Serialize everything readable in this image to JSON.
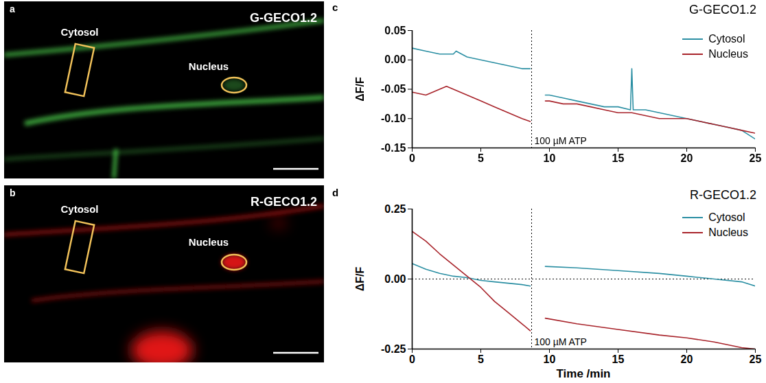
{
  "images": [
    {
      "panel": "a",
      "title": "G-GECO1.2",
      "color": "#4cd24c",
      "regions": [
        "Cytosol",
        "Nucleus"
      ]
    },
    {
      "panel": "b",
      "title": "R-GECO1.2",
      "color": "#e01818",
      "regions": [
        "Cytosol",
        "Nucleus"
      ]
    }
  ],
  "chart_data": [
    {
      "panel": "c",
      "type": "line",
      "title": "G-GECO1.2",
      "ylabel": "ΔF/F",
      "xlim": [
        0,
        25
      ],
      "xticks": [
        0,
        5,
        10,
        15,
        20,
        25
      ],
      "ylim": [
        -0.15,
        0.05
      ],
      "yticks": [
        0.05,
        {
          "value": 0,
          "label": "0.00"
        },
        -0.05,
        {
          "value": -0.1,
          "label": "-0.10"
        },
        {
          "value": -0.15,
          "label": "-0.15"
        }
      ],
      "legend": "upper right",
      "annotations": [
        {
          "x": 8.7,
          "text": "100 µM ATP"
        }
      ],
      "series": [
        {
          "name": "Cytosol",
          "color": "#2b8fa3",
          "x": [
            0,
            1,
            2,
            3,
            3.2,
            4,
            5,
            6,
            7,
            8,
            8.6,
            8.7,
            9.7,
            10,
            11,
            12,
            13,
            14,
            15,
            15.9,
            16,
            16.1,
            17,
            18,
            19,
            20,
            21,
            22,
            23,
            24,
            25
          ],
          "values": [
            0.02,
            0.015,
            0.01,
            0.01,
            0.015,
            0.005,
            0.0,
            -0.005,
            -0.01,
            -0.015,
            -0.015,
            null,
            -0.06,
            -0.06,
            -0.065,
            -0.07,
            -0.075,
            -0.08,
            -0.08,
            -0.085,
            -0.015,
            -0.085,
            -0.085,
            -0.09,
            -0.095,
            -0.1,
            -0.105,
            -0.11,
            -0.115,
            -0.12,
            -0.135
          ]
        },
        {
          "name": "Nucleus",
          "color": "#a8232a",
          "x": [
            0,
            1,
            2,
            2.5,
            3,
            4,
            5,
            6,
            7,
            8,
            8.6,
            8.7,
            9.7,
            10,
            11,
            12,
            13,
            14,
            15,
            16,
            17,
            18,
            19,
            20,
            21,
            22,
            23,
            24,
            25
          ],
          "values": [
            -0.055,
            -0.06,
            -0.05,
            -0.045,
            -0.05,
            -0.06,
            -0.07,
            -0.08,
            -0.09,
            -0.1,
            -0.105,
            null,
            -0.07,
            -0.07,
            -0.075,
            -0.075,
            -0.08,
            -0.085,
            -0.09,
            -0.09,
            -0.095,
            -0.1,
            -0.1,
            -0.1,
            -0.105,
            -0.11,
            -0.115,
            -0.12,
            -0.125
          ]
        }
      ]
    },
    {
      "panel": "d",
      "type": "line",
      "title": "R-GECO1.2",
      "xlabel": "Time /min",
      "ylabel": "ΔF/F",
      "xlim": [
        0,
        25
      ],
      "xticks": [
        0,
        5,
        10,
        15,
        20,
        25
      ],
      "ylim": [
        -0.25,
        0.25
      ],
      "yticks": [
        0.25,
        {
          "value": 0,
          "label": "0.00"
        },
        -0.25
      ],
      "reference_y": [
        0
      ],
      "legend": "upper right",
      "annotations": [
        {
          "x": 8.7,
          "text": "100 µM ATP"
        }
      ],
      "series": [
        {
          "name": "Cytosol",
          "color": "#2b8fa3",
          "x": [
            0,
            1,
            2,
            3,
            4,
            5,
            6,
            7,
            8,
            8.6,
            8.7,
            9.7,
            12,
            15,
            18,
            20,
            22,
            24,
            25
          ],
          "values": [
            0.055,
            0.035,
            0.02,
            0.01,
            0.005,
            -0.005,
            -0.01,
            -0.015,
            -0.02,
            -0.025,
            null,
            0.045,
            0.04,
            0.03,
            0.02,
            0.01,
            0.0,
            -0.01,
            -0.025
          ]
        },
        {
          "name": "Nucleus",
          "color": "#a8232a",
          "x": [
            0,
            1,
            2,
            3,
            4,
            5,
            6,
            7,
            8,
            8.6,
            8.7,
            9.7,
            12,
            15,
            18,
            20,
            22,
            24,
            25
          ],
          "values": [
            0.17,
            0.135,
            0.09,
            0.05,
            0.01,
            -0.03,
            -0.08,
            -0.12,
            -0.16,
            -0.185,
            null,
            -0.14,
            -0.16,
            -0.18,
            -0.2,
            -0.21,
            -0.225,
            -0.245,
            -0.25
          ]
        }
      ]
    }
  ]
}
